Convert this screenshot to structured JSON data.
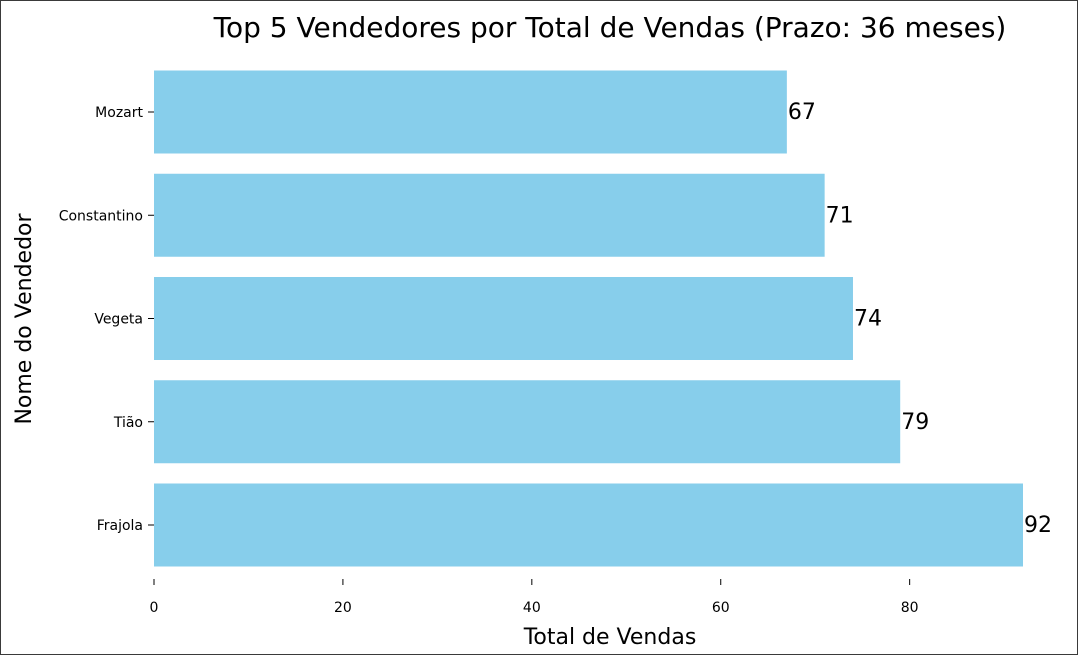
{
  "chart_data": {
    "type": "bar",
    "orientation": "horizontal",
    "title": "Top 5 Vendedores por Total de Vendas (Prazo: 36 meses)",
    "xlabel": "Total de Vendas",
    "ylabel": "Nome do Vendedor",
    "categories": [
      "Mozart",
      "Constantino",
      "Vegeta",
      "Tião",
      "Frajola"
    ],
    "values": [
      67,
      71,
      74,
      79,
      92
    ],
    "data_labels": [
      "67",
      "71",
      "74",
      "79",
      "92"
    ],
    "x_ticks": [
      0,
      20,
      40,
      60,
      80
    ],
    "x_tick_labels": [
      "0",
      "20",
      "40",
      "60",
      "80"
    ],
    "xlim": [
      0,
      92
    ],
    "bar_color": "#87ceeb",
    "grid": false,
    "legend": "none"
  }
}
